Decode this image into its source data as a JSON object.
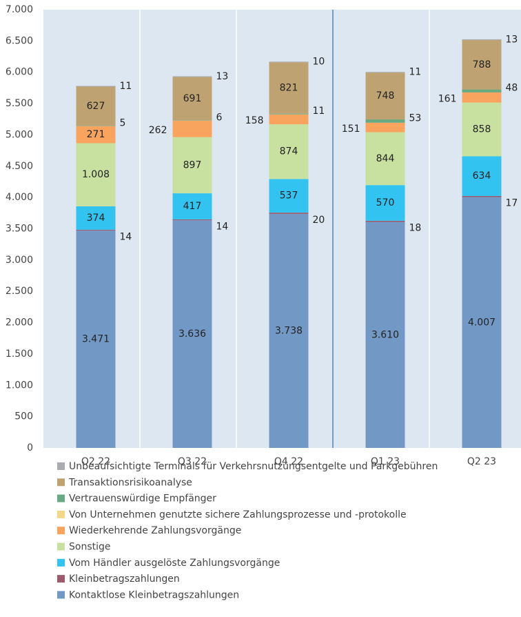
{
  "chart_data": {
    "type": "stacked_bar",
    "categories": [
      "Q2 22",
      "Q3 22",
      "Q4 22",
      "Q1 23",
      "Q2 23"
    ],
    "ylim": [
      0,
      7000
    ],
    "yticks": [
      0,
      500,
      {
        "value": 1000,
        "label": "1.000"
      },
      {
        "value": 1500,
        "label": "1.500"
      },
      {
        "value": 2000,
        "label": "2.000"
      },
      {
        "value": 2500,
        "label": "2.500"
      },
      {
        "value": 3000,
        "label": "3.000"
      },
      {
        "value": 3500,
        "label": "3.500"
      },
      {
        "value": 4000,
        "label": "4.000"
      },
      {
        "value": 4500,
        "label": "4.500"
      },
      {
        "value": 5000,
        "label": "5.000"
      },
      {
        "value": 5500,
        "label": "5.500"
      },
      {
        "value": 6000,
        "label": "6.000"
      },
      {
        "value": 6500,
        "label": "6.500"
      },
      {
        "value": 7000,
        "label": "7.000"
      }
    ],
    "grid": false,
    "legend": "bottom",
    "series": [
      {
        "name": "Kontaktlose Kleinbetragszahlungen",
        "color": "#7299c6",
        "values": [
          3471,
          3636,
          3738,
          3610,
          4007
        ],
        "value_labels": [
          "3.471",
          "3.636",
          "3.738",
          "3.610",
          "4.007"
        ]
      },
      {
        "name": "Kleinbetragszahlungen",
        "color": "#a05a6e",
        "values": [
          14,
          14,
          20,
          18,
          17
        ]
      },
      {
        "name": "Vom Händler ausgelöste Zahlungsvorgänge",
        "color": "#33c3f0",
        "values": [
          374,
          417,
          537,
          570,
          634
        ]
      },
      {
        "name": "Sonstige",
        "color": "#c8e0a0",
        "values": [
          1008,
          897,
          874,
          844,
          858
        ],
        "value_labels": [
          "1.008",
          "897",
          "874",
          "844",
          "858"
        ]
      },
      {
        "name": "Wiederkehrende Zahlungsvorgänge",
        "color": "#f8a35e",
        "values": [
          271,
          262,
          158,
          151,
          161
        ]
      },
      {
        "name": "Von Unternehmen genutzte sichere Zahlungsprozesse und -protokolle",
        "color": "#f5d78a",
        "values": [
          1,
          1,
          1,
          1,
          1
        ],
        "show_labels": false
      },
      {
        "name": "Vertrauenswürdige Empfänger",
        "color": "#6aaa80",
        "values": [
          5,
          6,
          11,
          53,
          48
        ]
      },
      {
        "name": "Transaktionsrisikoanalyse",
        "color": "#bfa272",
        "values": [
          627,
          691,
          821,
          748,
          788
        ]
      },
      {
        "name": "Unbeaufsichtigte Terminals für Verkehrsnutzungsentgelte und Parkgebühren",
        "color": "#a9abb0",
        "values": [
          11,
          13,
          10,
          11,
          13
        ]
      }
    ]
  }
}
